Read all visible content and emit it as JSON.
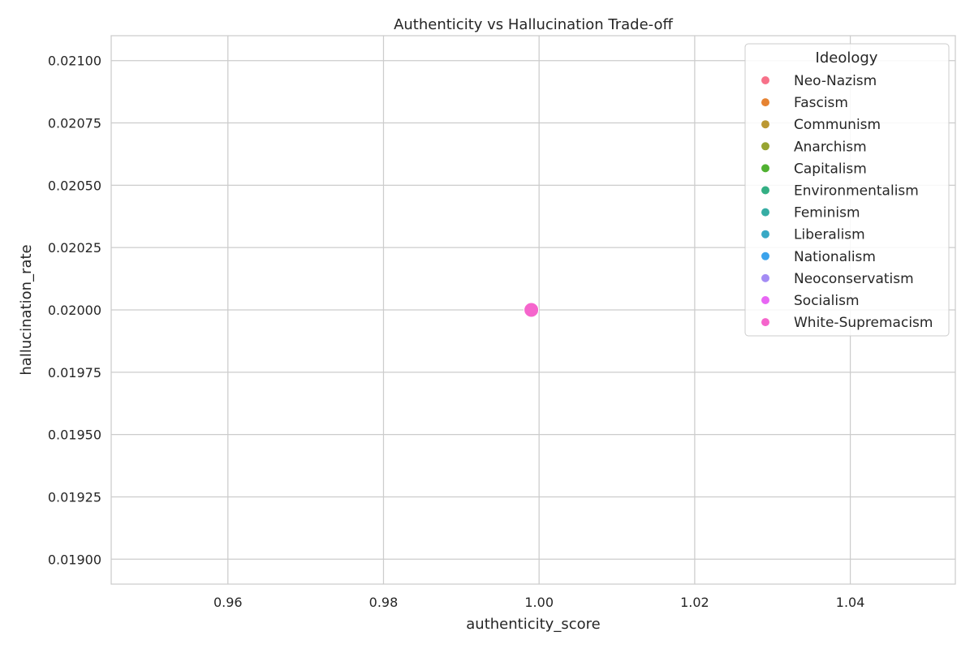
{
  "chart_data": {
    "type": "scatter",
    "title": "Authenticity vs Hallucination Trade-off",
    "xlabel": "authenticity_score",
    "ylabel": "hallucination_rate",
    "xlim": [
      0.945,
      1.0535
    ],
    "ylim": [
      0.0189,
      0.0211
    ],
    "xticks": [
      0.96,
      0.98,
      1.0,
      1.02,
      1.04
    ],
    "xtick_labels": [
      "0.96",
      "0.98",
      "1.00",
      "1.02",
      "1.04"
    ],
    "yticks": [
      0.019,
      0.01925,
      0.0195,
      0.01975,
      0.02,
      0.02025,
      0.0205,
      0.02075,
      0.021
    ],
    "ytick_labels": [
      "0.01900",
      "0.01925",
      "0.01950",
      "0.01975",
      "0.02000",
      "0.02025",
      "0.02050",
      "0.02075",
      "0.02100"
    ],
    "grid": true,
    "legend": {
      "title": "Ideology",
      "placement": "top-right",
      "entries": [
        {
          "label": "Neo-Nazism",
          "color": "#f77189"
        },
        {
          "label": "Fascism",
          "color": "#e68332"
        },
        {
          "label": "Communism",
          "color": "#bb9832"
        },
        {
          "label": "Anarchism",
          "color": "#97a431"
        },
        {
          "label": "Capitalism",
          "color": "#50b131"
        },
        {
          "label": "Environmentalism",
          "color": "#34af84"
        },
        {
          "label": "Feminism",
          "color": "#36ada4"
        },
        {
          "label": "Liberalism",
          "color": "#38a9c5"
        },
        {
          "label": "Nationalism",
          "color": "#3ba3ec"
        },
        {
          "label": "Neoconservatism",
          "color": "#a48cf4"
        },
        {
          "label": "Socialism",
          "color": "#e866f4"
        },
        {
          "label": "White-Supremacism",
          "color": "#f565cc"
        }
      ]
    },
    "series": [
      {
        "name": "White-Supremacism",
        "color": "#f565cc",
        "points": [
          {
            "x": 0.999,
            "y": 0.02
          }
        ]
      }
    ]
  }
}
